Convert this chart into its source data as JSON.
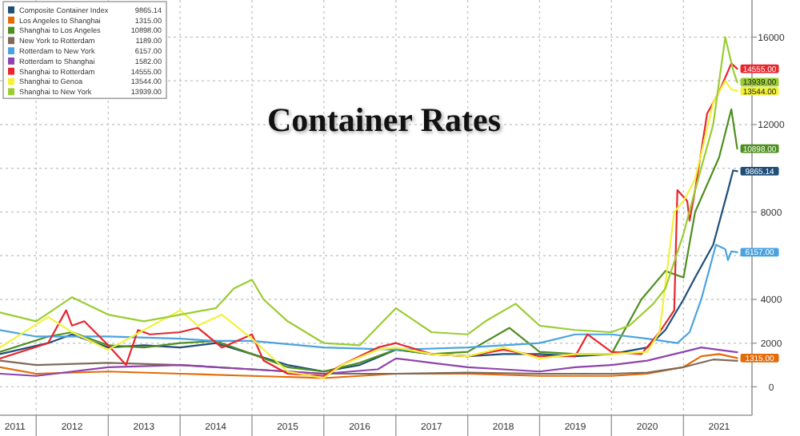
{
  "chart_data": {
    "type": "line",
    "title": "Container Rates",
    "annotations": [
      "9865.14",
      "1315.00",
      "10898.00",
      "1189.00",
      "6157.00",
      "1582.00",
      "14555.00",
      "13544.00",
      "13939.00"
    ],
    "legend": "top left",
    "grid": true,
    "xlim": [
      "2011-07-01",
      "2021-12-15"
    ],
    "xticks": [
      {
        "value": "2011-09-15",
        "label": "2011"
      },
      {
        "value": "2012-01-01",
        "label": null
      },
      {
        "value": "2012-07-01",
        "label": "2012"
      },
      {
        "value": "2013-01-01",
        "label": null
      },
      {
        "value": "2013-07-01",
        "label": "2013"
      },
      {
        "value": "2014-01-01",
        "label": null
      },
      {
        "value": "2014-07-01",
        "label": "2014"
      },
      {
        "value": "2015-01-01",
        "label": null
      },
      {
        "value": "2015-07-01",
        "label": "2015"
      },
      {
        "value": "2016-01-01",
        "label": null
      },
      {
        "value": "2016-07-01",
        "label": "2016"
      },
      {
        "value": "2017-01-01",
        "label": null
      },
      {
        "value": "2017-07-01",
        "label": "2017"
      },
      {
        "value": "2018-01-01",
        "label": null
      },
      {
        "value": "2018-07-01",
        "label": "2018"
      },
      {
        "value": "2019-01-01",
        "label": null
      },
      {
        "value": "2019-07-01",
        "label": "2019"
      },
      {
        "value": "2020-01-01",
        "label": null
      },
      {
        "value": "2020-07-01",
        "label": "2020"
      },
      {
        "value": "2021-01-01",
        "label": null
      },
      {
        "value": "2021-07-01",
        "label": "2021"
      }
    ],
    "ylim": [
      -1300,
      17700
    ],
    "yticks": [
      0,
      2000,
      4000,
      {
        "value": 6000,
        "label": null
      },
      8000,
      {
        "value": 10000,
        "label": null
      },
      12000,
      {
        "value": 14000,
        "label": null
      },
      16000
    ],
    "series": [
      {
        "name": "Composite Container Index",
        "color": "#1f4e79",
        "x": [
          "2011-07",
          "2012-03",
          "2012-07",
          "2013-01",
          "2013-07",
          "2014-01",
          "2014-07",
          "2015-01",
          "2015-07",
          "2016-01",
          "2016-07",
          "2017-01",
          "2017-07",
          "2018-01",
          "2018-07",
          "2019-01",
          "2019-07",
          "2020-01",
          "2020-07",
          "2020-10",
          "2021-01",
          "2021-03",
          "2021-06",
          "2021-08-15",
          "2021-09-10",
          "2021-10-01"
        ],
        "values": [
          1500,
          2000,
          2400,
          1800,
          1900,
          1800,
          2000,
          1500,
          1000,
          700,
          1000,
          1700,
          1500,
          1400,
          1500,
          1500,
          1400,
          1500,
          1800,
          2600,
          4000,
          5000,
          6500,
          9000,
          9900,
          9865.14
        ],
        "value_labels": [
          null,
          null,
          null,
          null,
          null,
          null,
          null,
          null,
          null,
          null,
          null,
          null,
          null,
          null,
          null,
          null,
          null,
          null,
          null,
          null,
          null,
          null,
          null,
          null,
          null,
          "9865.14"
        ]
      },
      {
        "name": "Los Angeles to Shanghai",
        "color": "#e36c09",
        "x": [
          "2011-07",
          "2012-01",
          "2013-01",
          "2014-01",
          "2015-01",
          "2016-01",
          "2017-01",
          "2018-01",
          "2019-01",
          "2020-01",
          "2020-07",
          "2021-01",
          "2021-04",
          "2021-07",
          "2021-10-01"
        ],
        "values": [
          900,
          600,
          700,
          600,
          500,
          400,
          600,
          600,
          500,
          500,
          600,
          900,
          1400,
          1500,
          1315
        ],
        "value_labels": [
          null,
          null,
          null,
          null,
          null,
          null,
          null,
          null,
          null,
          null,
          null,
          null,
          null,
          null,
          "1315.00"
        ]
      },
      {
        "name": "Shanghai to Los Angeles",
        "color": "#4e8f1f",
        "x": [
          "2011-07",
          "2012-03",
          "2012-07",
          "2013-01",
          "2013-07",
          "2014-01",
          "2014-07",
          "2015-01",
          "2015-07",
          "2016-01",
          "2016-07",
          "2017-01",
          "2017-07",
          "2018-01",
          "2018-08",
          "2019-01",
          "2019-07",
          "2020-01",
          "2020-06",
          "2020-10",
          "2021-01",
          "2021-03",
          "2021-07",
          "2021-09",
          "2021-10-01"
        ],
        "values": [
          1600,
          2300,
          2500,
          1900,
          1800,
          2000,
          2100,
          1500,
          900,
          700,
          1100,
          1700,
          1500,
          1600,
          2700,
          1600,
          1500,
          1500,
          4000,
          5300,
          5000,
          8000,
          10500,
          12700,
          10898
        ],
        "value_labels": [
          null,
          null,
          null,
          null,
          null,
          null,
          null,
          null,
          null,
          null,
          null,
          null,
          null,
          null,
          null,
          null,
          null,
          null,
          null,
          null,
          null,
          null,
          null,
          null,
          "10898.00"
        ]
      },
      {
        "name": "New York to Rotterdam",
        "color": "#7f6a5a",
        "x": [
          "2011-07",
          "2012-01",
          "2013-01",
          "2014-01",
          "2015-01",
          "2016-01",
          "2017-01",
          "2018-01",
          "2019-01",
          "2020-01",
          "2020-07",
          "2021-01",
          "2021-06",
          "2021-10-01"
        ],
        "values": [
          1200,
          1000,
          1100,
          1000,
          800,
          600,
          600,
          650,
          600,
          600,
          650,
          900,
          1250,
          1189
        ]
      },
      {
        "name": "Rotterdam to New York",
        "color": "#4aa3df",
        "x": [
          "2011-07",
          "2012-01",
          "2013-01",
          "2014-01",
          "2014-07",
          "2015-01",
          "2016-01",
          "2017-01",
          "2018-01",
          "2019-01",
          "2019-07",
          "2020-01",
          "2020-07",
          "2020-12",
          "2021-02",
          "2021-04",
          "2021-06-15",
          "2021-08",
          "2021-08-15",
          "2021-09",
          "2021-10-01"
        ],
        "values": [
          2600,
          2300,
          2300,
          2200,
          2100,
          2100,
          1800,
          1700,
          1800,
          2000,
          2400,
          2400,
          2200,
          2000,
          2500,
          4000,
          6500,
          6300,
          5800,
          6200,
          6157
        ],
        "value_labels": [
          null,
          null,
          null,
          null,
          null,
          null,
          null,
          null,
          null,
          null,
          null,
          null,
          null,
          null,
          null,
          null,
          null,
          null,
          null,
          null,
          "6157.00"
        ]
      },
      {
        "name": "Rotterdam to Shanghai",
        "color": "#8e44ad",
        "x": [
          "2011-07",
          "2012-01",
          "2013-01",
          "2014-01",
          "2015-01",
          "2016-01",
          "2016-10",
          "2017-01",
          "2017-07",
          "2018-01",
          "2018-07",
          "2019-01",
          "2019-07",
          "2020-01",
          "2020-07",
          "2021-01",
          "2021-04",
          "2021-10-01"
        ],
        "values": [
          600,
          500,
          900,
          1000,
          800,
          600,
          800,
          1300,
          1100,
          900,
          800,
          700,
          900,
          1000,
          1200,
          1600,
          1800,
          1582
        ]
      },
      {
        "name": "Shanghai to Rotterdam",
        "color": "#e8262d",
        "x": [
          "2011-07",
          "2012-03",
          "2012-06",
          "2012-07",
          "2012-09",
          "2013-01",
          "2013-04",
          "2013-06",
          "2013-08",
          "2014-01",
          "2014-04",
          "2014-08",
          "2015-01",
          "2015-03",
          "2015-07",
          "2016-01",
          "2016-04",
          "2016-10",
          "2017-01",
          "2017-07",
          "2018-01",
          "2018-07",
          "2019-01",
          "2019-07",
          "2019-09",
          "2020-01",
          "2020-06",
          "2020-09",
          "2020-11-15",
          "2020-12",
          "2021-01-20",
          "2021-02",
          "2021-03",
          "2021-05",
          "2021-07",
          "2021-09",
          "2021-10-01"
        ],
        "values": [
          1300,
          2000,
          3500,
          2800,
          3000,
          1900,
          1000,
          2600,
          2400,
          2500,
          2700,
          1800,
          2400,
          1200,
          600,
          500,
          1000,
          1800,
          2000,
          1500,
          1400,
          1700,
          1400,
          1400,
          2400,
          1600,
          1500,
          2500,
          3500,
          9000,
          8500,
          7600,
          9000,
          12500,
          13500,
          14800,
          14555
        ],
        "value_labels": [
          null,
          null,
          null,
          null,
          null,
          null,
          null,
          null,
          null,
          null,
          null,
          null,
          null,
          null,
          null,
          null,
          null,
          null,
          null,
          null,
          null,
          null,
          null,
          null,
          null,
          null,
          null,
          null,
          null,
          null,
          null,
          null,
          null,
          null,
          null,
          null,
          "14555.00"
        ]
      },
      {
        "name": "Shanghai to Genoa",
        "color": "#f2f23a",
        "x": [
          "2011-07",
          "2012-03",
          "2012-07",
          "2013-01",
          "2013-07",
          "2014-01",
          "2014-04",
          "2014-08",
          "2015-01",
          "2015-07",
          "2016-01",
          "2016-04",
          "2016-10",
          "2017-01",
          "2017-07",
          "2018-01",
          "2018-07",
          "2019-01",
          "2019-07",
          "2020-01",
          "2020-07",
          "2020-09",
          "2020-11-15",
          "2021-01",
          "2021-03",
          "2021-06",
          "2021-08",
          "2021-09",
          "2021-10-01"
        ],
        "values": [
          1800,
          3200,
          2500,
          1700,
          2600,
          3500,
          2800,
          3300,
          2200,
          700,
          400,
          1000,
          1700,
          1800,
          1500,
          1400,
          1800,
          1300,
          1500,
          1500,
          1600,
          2500,
          8000,
          8500,
          9500,
          13000,
          14000,
          13600,
          13544
        ],
        "value_labels": [
          null,
          null,
          null,
          null,
          null,
          null,
          null,
          null,
          null,
          null,
          null,
          null,
          null,
          null,
          null,
          null,
          null,
          null,
          null,
          null,
          null,
          null,
          null,
          null,
          null,
          null,
          null,
          null,
          "13544.00"
        ]
      },
      {
        "name": "Shanghai to New York",
        "color": "#9acd32",
        "x": [
          "2011-07",
          "2012-01",
          "2012-07",
          "2013-01",
          "2013-07",
          "2014-01",
          "2014-07",
          "2014-10",
          "2015-01",
          "2015-03",
          "2015-07",
          "2016-01",
          "2016-07",
          "2017-01",
          "2017-07",
          "2018-01",
          "2018-04",
          "2018-09",
          "2019-01",
          "2019-07",
          "2020-01",
          "2020-04",
          "2020-08",
          "2020-10",
          "2021-01",
          "2021-03",
          "2021-06",
          "2021-08",
          "2021-09-10",
          "2021-10-01"
        ],
        "values": [
          3400,
          3000,
          4100,
          3300,
          3000,
          3300,
          3600,
          4500,
          4900,
          4000,
          3000,
          2000,
          1900,
          3600,
          2500,
          2400,
          3000,
          3800,
          2800,
          2600,
          2500,
          2800,
          3800,
          4500,
          7000,
          9000,
          12000,
          16000,
          14500,
          13939
        ],
        "value_labels": [
          null,
          null,
          null,
          null,
          null,
          null,
          null,
          null,
          null,
          null,
          null,
          null,
          null,
          null,
          null,
          null,
          null,
          null,
          null,
          null,
          null,
          null,
          null,
          null,
          null,
          null,
          null,
          null,
          null,
          "13939.00"
        ]
      }
    ]
  }
}
